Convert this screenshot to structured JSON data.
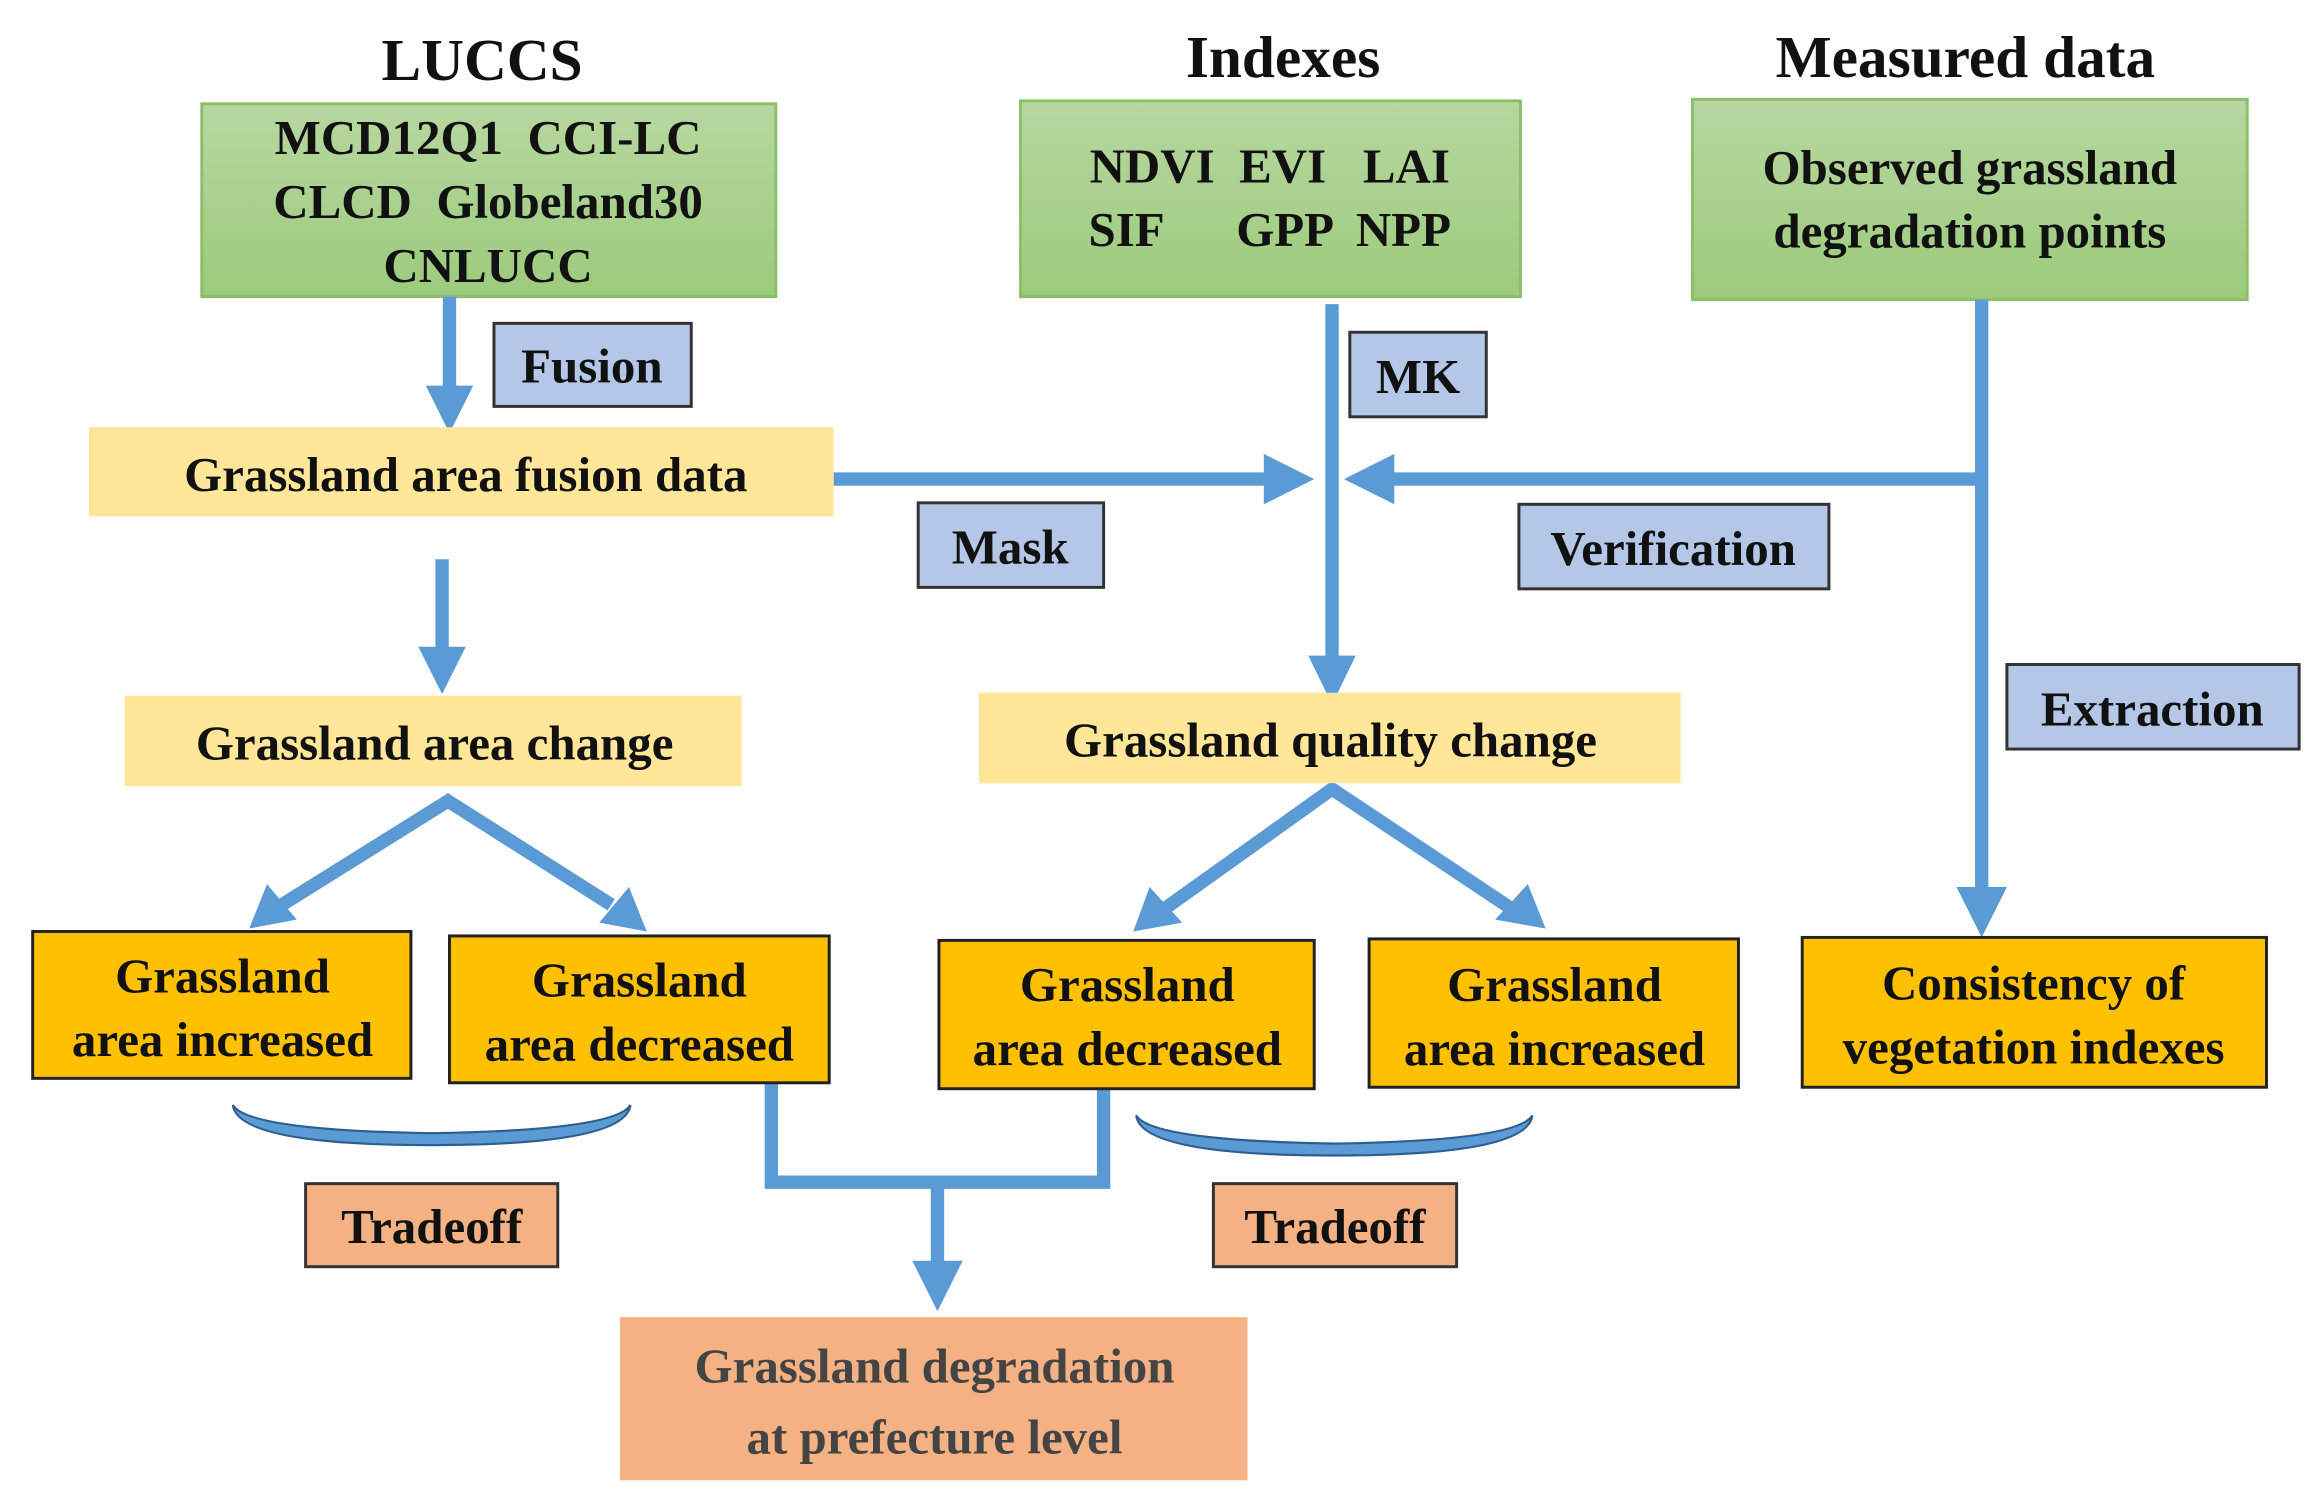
{
  "columns": {
    "luccs": {
      "title": "LUCCS",
      "lines": [
        "MCD12Q1  CCI-LC",
        "CLCD  Globeland30",
        "CNLUCC"
      ]
    },
    "indexes": {
      "title": "Indexes",
      "lines": [
        "NDVI  EVI   LAI",
        "SIF      GPP  NPP"
      ]
    },
    "measured": {
      "title": "Measured data",
      "lines": [
        "Observed grassland",
        "degradation points"
      ]
    }
  },
  "labels": {
    "fusion": "Fusion",
    "mk": "MK",
    "mask": "Mask",
    "verification": "Verification",
    "extraction": "Extraction",
    "tradeoff_left": "Tradeoff",
    "tradeoff_right": "Tradeoff"
  },
  "nodes": {
    "fusion_data": "Grassland area fusion data",
    "area_change": "Grassland area change",
    "quality_change": "Grassland quality change",
    "area_increased_1": [
      "Grassland",
      "area increased"
    ],
    "area_decreased_1": [
      "Grassland",
      "area decreased"
    ],
    "area_decreased_2": [
      "Grassland",
      "area decreased"
    ],
    "area_increased_2": [
      "Grassland",
      "area increased"
    ],
    "consistency": [
      "Consistency of",
      "vegetation indexes"
    ],
    "final": [
      "Grassland degradation",
      "at prefecture level"
    ]
  },
  "colors": {
    "data_source_box": "#a9d18e",
    "intermediate_box": "#ffe699",
    "result_box": "#ffc000",
    "method_box": "#b4c7e7",
    "output_box": "#f4b183",
    "arrow": "#5b9bd5"
  }
}
